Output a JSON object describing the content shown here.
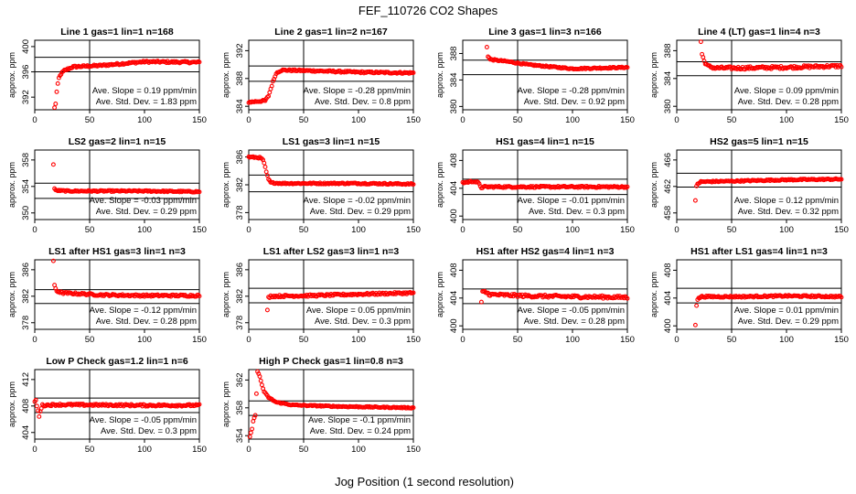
{
  "title": "FEF_110726  CO2 Shapes",
  "xlabel": "Jog Position (1 second resolution)",
  "ylabel": "approx. ppm",
  "colors": {
    "points": "#ff0000",
    "axes": "#000000",
    "background": "#ffffff"
  },
  "chart_data": [
    {
      "type": "scatter",
      "title": "Line 1 gas=1 lin=1 n=168",
      "xlim": [
        0,
        150
      ],
      "ylim": [
        390,
        401
      ],
      "yticks": [
        392,
        396,
        400
      ],
      "hlines": [
        396,
        398.3
      ],
      "vline": 50,
      "slope": "Ave. Slope =  0.19  ppm/min",
      "sd": "Ave. Std. Dev. =  1.83  ppm",
      "shape": {
        "start": 18,
        "points": [
          [
            18,
            390.3
          ],
          [
            19,
            391
          ],
          [
            20,
            392.8
          ],
          [
            21,
            394
          ],
          [
            22,
            395
          ],
          [
            24,
            395.7
          ],
          [
            27,
            396.2
          ],
          [
            35,
            396.8
          ],
          [
            60,
            397
          ],
          [
            80,
            397.3
          ],
          [
            100,
            397.6
          ],
          [
            150,
            397.5
          ]
        ],
        "noise": 0.15
      }
    },
    {
      "type": "scatter",
      "title": "Line 2 gas=1 lin=2 n=167",
      "xlim": [
        0,
        150
      ],
      "ylim": [
        383.5,
        393.5
      ],
      "yticks": [
        384,
        388,
        392
      ],
      "hlines": [
        387.6,
        389.8
      ],
      "vline": 50,
      "slope": "Ave. Slope =  -0.28  ppm/min",
      "sd": "Ave. Std. Dev. =  0.8  ppm",
      "shape": {
        "start": 0,
        "points": [
          [
            0,
            384.6
          ],
          [
            15,
            384.8
          ],
          [
            18,
            385.5
          ],
          [
            20,
            386.5
          ],
          [
            22,
            387.5
          ],
          [
            24,
            388.4
          ],
          [
            26,
            388.9
          ],
          [
            30,
            389.2
          ],
          [
            60,
            389.1
          ],
          [
            100,
            388.9
          ],
          [
            150,
            388.8
          ]
        ],
        "noise": 0.12
      }
    },
    {
      "type": "scatter",
      "title": "Line 3 gas=1 lin=3 n=166",
      "xlim": [
        0,
        150
      ],
      "ylim": [
        379.5,
        390
      ],
      "yticks": [
        380,
        384,
        388
      ],
      "hlines": [
        384.8,
        387
      ],
      "vline": 50,
      "slope": "Ave. Slope =  -0.28  ppm/min",
      "sd": "Ave. Std. Dev. =  0.92  ppm",
      "shape": {
        "start": 22,
        "points": [
          [
            22,
            389
          ],
          [
            23,
            387.6
          ],
          [
            25,
            387.1
          ],
          [
            40,
            386.8
          ],
          [
            60,
            386.3
          ],
          [
            80,
            386
          ],
          [
            100,
            385.7
          ],
          [
            150,
            385.9
          ]
        ],
        "noise": 0.1
      }
    },
    {
      "type": "scatter",
      "title": "Line 4 (LT) gas=1 lin=4 n=3",
      "xlim": [
        0,
        150
      ],
      "ylim": [
        379.5,
        389.5
      ],
      "yticks": [
        380,
        384,
        388
      ],
      "hlines": [
        384.4,
        386.4
      ],
      "vline": 50,
      "slope": "Ave. Slope =  0.09  ppm/min",
      "sd": "Ave. Std. Dev. =  0.28  ppm",
      "shape": {
        "start": 22,
        "points": [
          [
            22,
            389.3
          ],
          [
            23,
            387.5
          ],
          [
            25,
            386.5
          ],
          [
            28,
            385.8
          ],
          [
            35,
            385.5
          ],
          [
            60,
            385.5
          ],
          [
            100,
            385.6
          ],
          [
            150,
            385.8
          ]
        ],
        "noise": 0.2
      }
    },
    {
      "type": "scatter",
      "title": "LS2 gas=2 lin=1 n=15",
      "xlim": [
        0,
        150
      ],
      "ylim": [
        349,
        359.5
      ],
      "yticks": [
        350,
        354,
        358
      ],
      "hlines": [
        352.2,
        354.5
      ],
      "vline": 50,
      "slope": "Ave. Slope =  -0.03  ppm/min",
      "sd": "Ave. Std. Dev. =  0.29  ppm",
      "shape": {
        "start": 17,
        "points": [
          [
            17,
            357.3
          ],
          [
            18,
            353.7
          ],
          [
            19,
            353.4
          ],
          [
            30,
            353.3
          ],
          [
            100,
            353.3
          ],
          [
            150,
            353.2
          ]
        ],
        "noise": 0.1
      }
    },
    {
      "type": "scatter",
      "title": "LS1 gas=3 lin=1 n=15",
      "xlim": [
        0,
        150
      ],
      "ylim": [
        377,
        387
      ],
      "yticks": [
        378,
        382,
        386
      ],
      "hlines": [
        381,
        383.4
      ],
      "vline": 50,
      "slope": "Ave. Slope =  -0.02  ppm/min",
      "sd": "Ave. Std. Dev. =  0.29  ppm",
      "shape": {
        "start": 0,
        "points": [
          [
            0,
            386
          ],
          [
            10,
            385.9
          ],
          [
            13,
            385.6
          ],
          [
            15,
            384.5
          ],
          [
            16,
            383.8
          ],
          [
            18,
            382.8
          ],
          [
            20,
            382.3
          ],
          [
            30,
            382.2
          ],
          [
            100,
            382.2
          ],
          [
            150,
            382.1
          ]
        ],
        "noise": 0.1
      }
    },
    {
      "type": "scatter",
      "title": "HS1 gas=4 lin=1 n=15",
      "xlim": [
        0,
        150
      ],
      "ylim": [
        399.5,
        409.5
      ],
      "yticks": [
        400,
        404,
        408
      ],
      "hlines": [
        403.1,
        405.3
      ],
      "vline": 50,
      "slope": "Ave. Slope =  -0.01  ppm/min",
      "sd": "Ave. Std. Dev. =  0.3  ppm",
      "shape": {
        "start": 0,
        "points": [
          [
            0,
            404.8
          ],
          [
            10,
            405
          ],
          [
            14,
            404.8
          ],
          [
            17,
            404.1
          ],
          [
            20,
            404.2
          ],
          [
            30,
            404.2
          ],
          [
            100,
            404.2
          ],
          [
            150,
            404.2
          ]
        ],
        "noise": 0.12
      }
    },
    {
      "type": "scatter",
      "title": "HS2 gas=5 lin=1 n=15",
      "xlim": [
        0,
        150
      ],
      "ylim": [
        457,
        467.5
      ],
      "yticks": [
        458,
        462,
        466
      ],
      "hlines": [
        461.9,
        464
      ],
      "vline": 50,
      "slope": "Ave. Slope =  0.12  ppm/min",
      "sd": "Ave. Std. Dev. =  0.32  ppm",
      "shape": {
        "start": 17,
        "points": [
          [
            17,
            459.8
          ],
          [
            18,
            462
          ],
          [
            19,
            462.4
          ],
          [
            22,
            462.7
          ],
          [
            50,
            462.8
          ],
          [
            100,
            463
          ],
          [
            150,
            463.1
          ]
        ],
        "noise": 0.1
      }
    },
    {
      "type": "scatter",
      "title": "LS1 after HS1 gas=3 lin=1 n=3",
      "xlim": [
        0,
        150
      ],
      "ylim": [
        377,
        387.5
      ],
      "yticks": [
        378,
        382,
        386
      ],
      "hlines": [
        380.9,
        383
      ],
      "vline": 50,
      "slope": "Ave. Slope =  -0.12  ppm/min",
      "sd": "Ave. Std. Dev. =  0.28  ppm",
      "shape": {
        "start": 17,
        "points": [
          [
            17,
            387.2
          ],
          [
            18,
            383.6
          ],
          [
            20,
            382.8
          ],
          [
            25,
            382.5
          ],
          [
            60,
            382.2
          ],
          [
            100,
            382.1
          ],
          [
            150,
            382.1
          ]
        ],
        "noise": 0.15
      }
    },
    {
      "type": "scatter",
      "title": "LS1 after LS2 gas=3 lin=1 n=3",
      "xlim": [
        0,
        150
      ],
      "ylim": [
        377,
        387.5
      ],
      "yticks": [
        378,
        382,
        386
      ],
      "hlines": [
        381,
        383.2
      ],
      "vline": 50,
      "slope": "Ave. Slope =  0.05  ppm/min",
      "sd": "Ave. Std. Dev. =  0.3  ppm",
      "shape": {
        "start": 17,
        "points": [
          [
            17,
            379.8
          ],
          [
            18,
            381.8
          ],
          [
            20,
            382
          ],
          [
            60,
            382.1
          ],
          [
            100,
            382.3
          ],
          [
            150,
            382.5
          ]
        ],
        "noise": 0.15
      }
    },
    {
      "type": "scatter",
      "title": "HS1 after HS2 gas=4 lin=1 n=3",
      "xlim": [
        0,
        150
      ],
      "ylim": [
        399.5,
        409.5
      ],
      "yticks": [
        400,
        404,
        408
      ],
      "hlines": [
        403.2,
        405.3
      ],
      "vline": 50,
      "slope": "Ave. Slope =  -0.05  ppm/min",
      "sd": "Ave. Std. Dev. =  0.28  ppm",
      "shape": {
        "start": 17,
        "points": [
          [
            17,
            403.3
          ],
          [
            18,
            404.8
          ],
          [
            20,
            404.9
          ],
          [
            25,
            404.5
          ],
          [
            60,
            404.3
          ],
          [
            100,
            404.2
          ],
          [
            150,
            404.1
          ]
        ],
        "noise": 0.2
      }
    },
    {
      "type": "scatter",
      "title": "HS1 after LS1 gas=4 lin=1 n=3",
      "xlim": [
        0,
        150
      ],
      "ylim": [
        399.5,
        409.5
      ],
      "yticks": [
        400,
        404,
        408
      ],
      "hlines": [
        403.3,
        405.4
      ],
      "vline": 50,
      "slope": "Ave. Slope =  0.01  ppm/min",
      "sd": "Ave. Std. Dev. =  0.29  ppm",
      "shape": {
        "start": 17,
        "points": [
          [
            17,
            400.2
          ],
          [
            18,
            403
          ],
          [
            19,
            403.8
          ],
          [
            22,
            404.2
          ],
          [
            60,
            404.2
          ],
          [
            100,
            404.3
          ],
          [
            150,
            404.2
          ]
        ],
        "noise": 0.12
      }
    },
    {
      "type": "scatter",
      "title": "Low P Check gas=1.2 lin=1 n=6",
      "xlim": [
        0,
        150
      ],
      "ylim": [
        403,
        413.5
      ],
      "yticks": [
        404,
        408,
        412
      ],
      "hlines": [
        407,
        409.2
      ],
      "vline": 50,
      "slope": "Ave. Slope =  -0.05  ppm/min",
      "sd": "Ave. Std. Dev. =  0.3  ppm",
      "shape": {
        "start": 0,
        "points": [
          [
            0,
            408.6
          ],
          [
            1,
            408.9
          ],
          [
            2,
            408
          ],
          [
            3,
            407.2
          ],
          [
            4,
            406.5
          ],
          [
            5,
            407.3
          ],
          [
            7,
            408.1
          ],
          [
            20,
            408.2
          ],
          [
            100,
            408.1
          ],
          [
            150,
            408.1
          ]
        ],
        "noise": 0.15
      }
    },
    {
      "type": "scatter",
      "title": "High P Check gas=1 lin=0.8 n=3",
      "xlim": [
        0,
        150
      ],
      "ylim": [
        353.5,
        363.5
      ],
      "yticks": [
        354,
        358,
        362
      ],
      "hlines": [
        356.9,
        359
      ],
      "vline": 50,
      "slope": "Ave. Slope =  -0.1  ppm/min",
      "sd": "Ave. Std. Dev. =  0.24  ppm",
      "shape": {
        "start": 1,
        "points": [
          [
            1,
            353.8
          ],
          [
            3,
            355
          ],
          [
            4,
            356
          ],
          [
            6,
            357
          ],
          [
            8,
            363.2
          ],
          [
            10,
            362.5
          ],
          [
            12,
            361.3
          ],
          [
            14,
            360.3
          ],
          [
            18,
            359.5
          ],
          [
            25,
            358.8
          ],
          [
            40,
            358.4
          ],
          [
            80,
            358.2
          ],
          [
            150,
            358
          ]
        ],
        "noise": 0.08
      }
    }
  ]
}
